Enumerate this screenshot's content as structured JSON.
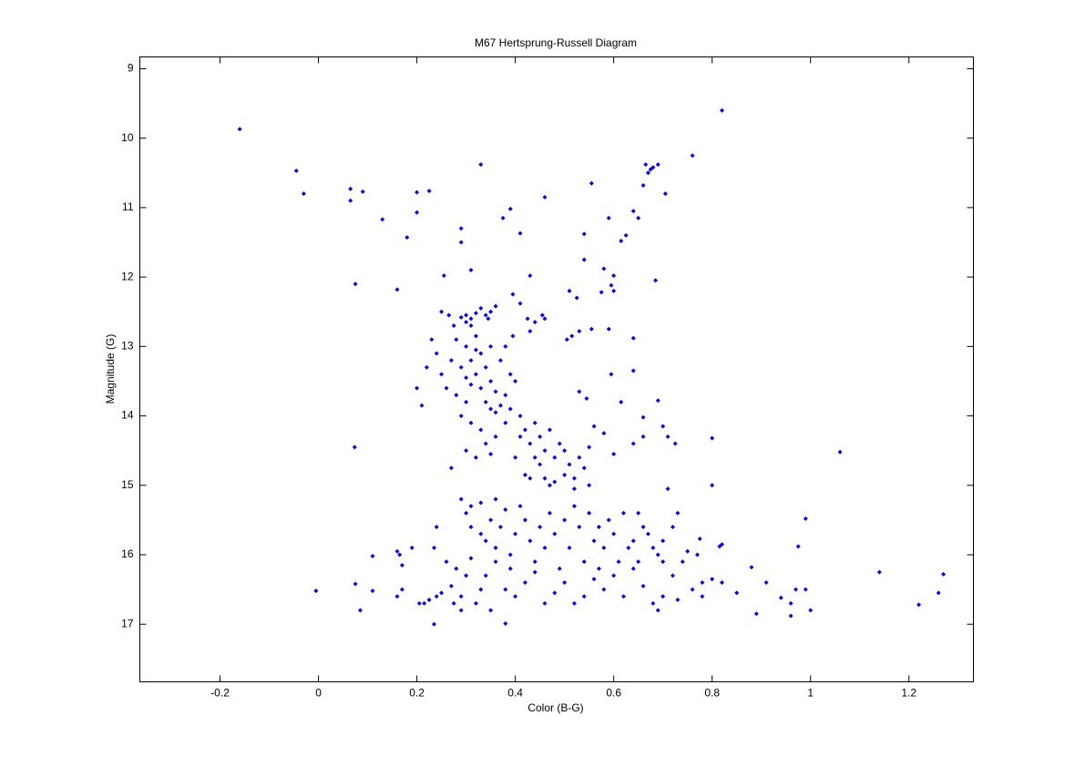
{
  "chart_data": {
    "type": "scatter",
    "title": "M67 Hertsprung-Russell Diagram",
    "x_label": "Color (B-G)",
    "y_label": "Magnitude (G)",
    "color": "#0000ff",
    "xlim": [
      -0.363,
      1.331
    ],
    "ylim": [
      17.83,
      8.83
    ],
    "xticks": [
      -0.2,
      0,
      0.2,
      0.4,
      0.6,
      0.8,
      1,
      1.2
    ],
    "yticks": [
      9,
      10,
      11,
      12,
      13,
      14,
      15,
      16,
      17
    ],
    "grid": false,
    "x": [
      -0.16,
      0.82,
      -0.045,
      -0.03,
      0.065,
      0.065,
      0.09,
      0.2,
      0.225,
      0.13,
      0.2,
      0.18,
      0.33,
      0.76,
      0.665,
      0.675,
      0.69,
      0.68,
      0.66,
      0.67,
      0.705,
      0.555,
      0.46,
      0.39,
      0.375,
      0.59,
      0.64,
      0.65,
      0.625,
      0.615,
      0.54,
      0.41,
      0.29,
      0.29,
      0.075,
      0.16,
      0.255,
      0.31,
      0.54,
      0.43,
      0.58,
      0.6,
      0.595,
      0.6,
      0.685,
      0.525,
      0.575,
      0.51,
      0.41,
      0.455,
      0.46,
      0.44,
      0.395,
      0.425,
      0.53,
      0.555,
      0.59,
      0.505,
      0.515,
      0.64,
      0.395,
      0.43,
      0.64,
      0.595,
      0.53,
      0.545,
      0.615,
      0.69,
      0.0735,
      1.06,
      0.2,
      0.21,
      0.56,
      0.66,
      0.7,
      0.71,
      0.725,
      0.8,
      0.8,
      0.64,
      0.58,
      0.6,
      0.66,
      0.55,
      -0.005,
      0.075,
      0.085,
      0.11,
      0.11,
      0.16,
      0.165,
      0.17,
      0.16,
      0.17,
      0.19,
      0.205,
      0.215,
      0.225,
      0.235,
      0.24,
      0.24,
      0.235,
      0.25,
      0.26,
      0.27,
      0.275,
      0.28,
      0.29,
      0.29,
      0.3,
      0.31,
      0.32,
      0.33,
      0.34,
      0.35,
      0.36,
      0.38,
      0.38,
      0.39,
      0.4,
      0.42,
      0.44,
      0.46,
      0.48,
      0.5,
      0.52,
      0.54,
      0.56,
      0.58,
      0.6,
      0.62,
      0.64,
      0.66,
      0.68,
      0.69,
      0.7,
      0.72,
      0.73,
      0.74,
      0.76,
      0.78,
      0.78,
      0.8,
      0.82,
      0.85,
      0.88,
      0.89,
      0.91,
      0.94,
      0.96,
      0.96,
      0.97,
      0.99,
      1,
      0.975,
      0.99,
      1.14,
      1.22,
      1.26,
      1.27,
      0.82,
      0.815,
      0.775,
      0.77,
      0.75,
      0.73,
      0.71,
      0.72,
      0.7,
      0.69,
      0.7,
      0.66,
      0.65,
      0.64,
      0.3,
      0.31,
      0.32,
      0.3,
      0.33,
      0.34,
      0.35,
      0.31,
      0.29,
      0.36,
      0.345,
      0.265,
      0.275,
      0.25,
      0.28,
      0.3,
      0.32,
      0.31,
      0.33,
      0.29,
      0.3,
      0.32,
      0.34,
      0.33,
      0.31,
      0.35,
      0.36,
      0.34,
      0.35,
      0.37,
      0.38,
      0.36,
      0.27,
      0.25,
      0.26,
      0.28,
      0.24,
      0.23,
      0.22,
      0.37,
      0.38,
      0.39,
      0.4,
      0.35,
      0.32,
      0.3,
      0.29,
      0.31,
      0.33,
      0.34,
      0.36,
      0.35,
      0.3,
      0.32,
      0.27,
      0.38,
      0.39,
      0.41,
      0.42,
      0.43,
      0.44,
      0.45,
      0.46,
      0.47,
      0.48,
      0.49,
      0.5,
      0.51,
      0.52,
      0.53,
      0.42,
      0.43,
      0.45,
      0.46,
      0.48,
      0.5,
      0.52,
      0.54,
      0.4,
      0.41,
      0.44,
      0.47,
      0.55,
      0.29,
      0.3,
      0.31,
      0.33,
      0.35,
      0.36,
      0.37,
      0.38,
      0.4,
      0.41,
      0.42,
      0.43,
      0.45,
      0.46,
      0.47,
      0.48,
      0.5,
      0.51,
      0.52,
      0.53,
      0.55,
      0.56,
      0.57,
      0.58,
      0.59,
      0.6,
      0.61,
      0.62,
      0.63,
      0.65,
      0.67,
      0.68,
      0.34,
      0.36,
      0.39,
      0.44,
      0.49,
      0.54,
      0.57,
      0.31,
      0.33
    ],
    "values": [
      9.87,
      9.6,
      10.47,
      10.8,
      10.73,
      10.9,
      10.77,
      10.78,
      10.76,
      11.17,
      11.07,
      11.43,
      10.38,
      10.25,
      10.38,
      10.45,
      10.38,
      10.42,
      10.68,
      10.5,
      10.8,
      10.65,
      10.85,
      11.02,
      11.15,
      11.15,
      11.05,
      11.15,
      11.4,
      11.48,
      11.38,
      11.37,
      11.3,
      11.5,
      12.1,
      12.18,
      11.98,
      11.9,
      11.75,
      11.98,
      11.88,
      11.98,
      12.12,
      12.2,
      12.05,
      12.3,
      12.22,
      12.2,
      12.38,
      12.55,
      12.6,
      12.65,
      12.25,
      12.6,
      12.78,
      12.75,
      12.75,
      12.9,
      12.85,
      12.88,
      12.85,
      12.78,
      13.35,
      13.4,
      13.65,
      13.75,
      13.8,
      13.78,
      14.45,
      14.52,
      13.6,
      13.85,
      14.15,
      14.02,
      14.15,
      14.3,
      14.4,
      14.32,
      15.0,
      14.4,
      14.25,
      14.55,
      14.3,
      14.45,
      16.52,
      16.42,
      16.8,
      16.02,
      16.52,
      15.95,
      16.0,
      16.15,
      16.6,
      16.5,
      15.9,
      16.7,
      16.7,
      16.65,
      17.0,
      16.6,
      15.6,
      15.9,
      16.55,
      16.1,
      16.45,
      16.7,
      16.2,
      16.8,
      16.6,
      16.3,
      16.05,
      16.7,
      16.5,
      16.3,
      16.8,
      16.1,
      16.99,
      16.5,
      16.2,
      16.6,
      16.4,
      16.25,
      16.7,
      16.55,
      16.4,
      16.7,
      16.6,
      16.35,
      16.5,
      16.3,
      16.6,
      16.2,
      16.45,
      16.7,
      16.8,
      16.6,
      16.3,
      16.65,
      16.1,
      16.5,
      16.4,
      16.6,
      16.35,
      16.4,
      16.55,
      16.18,
      16.85,
      16.4,
      16.62,
      16.7,
      16.88,
      16.5,
      16.5,
      16.8,
      15.88,
      15.48,
      16.25,
      16.72,
      16.55,
      16.28,
      15.85,
      15.88,
      15.77,
      16.0,
      15.95,
      15.4,
      15.05,
      15.6,
      15.8,
      16.0,
      16.1,
      15.6,
      15.4,
      15.8,
      12.55,
      12.6,
      12.52,
      12.65,
      12.45,
      12.55,
      12.5,
      12.7,
      12.58,
      12.42,
      12.6,
      12.55,
      12.7,
      12.5,
      12.9,
      13.0,
      13.05,
      13.2,
      13.1,
      13.3,
      13.45,
      13.4,
      13.3,
      13.6,
      13.55,
      13.5,
      13.65,
      13.8,
      13.9,
      13.85,
      13.7,
      13.95,
      13.2,
      13.4,
      13.6,
      13.7,
      13.1,
      12.9,
      13.3,
      13.2,
      13.0,
      13.4,
      13.5,
      13.0,
      12.85,
      13.8,
      14.0,
      14.1,
      14.2,
      14.4,
      14.3,
      14.55,
      14.5,
      14.6,
      14.75,
      14.1,
      13.9,
      14.0,
      14.2,
      14.4,
      14.1,
      14.3,
      14.5,
      14.2,
      14.6,
      14.4,
      14.5,
      14.7,
      14.9,
      14.6,
      14.85,
      14.9,
      14.7,
      14.9,
      14.95,
      14.85,
      15.05,
      14.75,
      14.6,
      14.3,
      14.6,
      15.0,
      15.0,
      15.2,
      15.4,
      15.3,
      15.25,
      15.5,
      15.2,
      15.6,
      15.35,
      15.7,
      15.3,
      15.5,
      15.8,
      15.6,
      15.9,
      15.4,
      15.7,
      15.5,
      15.9,
      15.3,
      15.6,
      15.4,
      15.8,
      15.6,
      15.9,
      15.5,
      15.7,
      16.1,
      15.4,
      15.9,
      16.1,
      15.7,
      15.9,
      15.8,
      15.9,
      16.0,
      16.1,
      16.2,
      16.1,
      16.2,
      15.6,
      15.7
    ]
  }
}
